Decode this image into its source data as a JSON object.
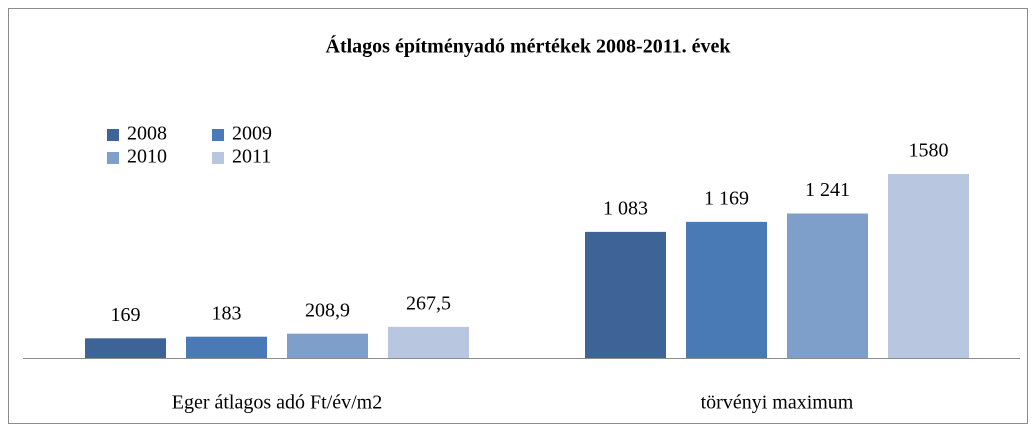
{
  "chart_data": {
    "type": "bar",
    "title": "Átlagos építményadó mértékek 2008-2011. évek",
    "categories": [
      "Eger átlagos adó Ft/év/m2",
      "törvényi maximum"
    ],
    "series": [
      {
        "name": "2008",
        "color": "#3d6397",
        "values": [
          169,
          1083
        ],
        "value_labels": [
          "169",
          "1 083"
        ]
      },
      {
        "name": "2009",
        "color": "#4a7ab5",
        "values": [
          183,
          1169
        ],
        "value_labels": [
          "183",
          "1 169"
        ]
      },
      {
        "name": "2010",
        "color": "#7f9fcb",
        "values": [
          208.9,
          1241
        ],
        "value_labels": [
          "208,9",
          "1 241"
        ]
      },
      {
        "name": "2011",
        "color": "#b8c6e0",
        "values": [
          267.5,
          1580
        ],
        "value_labels": [
          "267,5",
          "1580"
        ]
      }
    ]
  }
}
